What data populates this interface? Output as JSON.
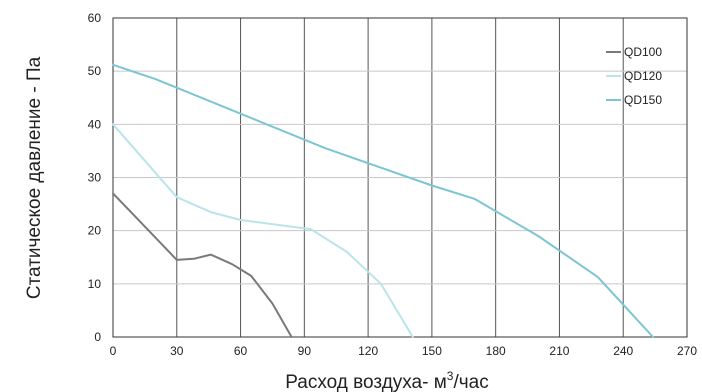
{
  "chart_data": {
    "type": "line",
    "title": "",
    "xlabel": "Расход воздуха- м³/час",
    "xlabel_main": "Расход воздуха- м",
    "xlabel_sup": "3",
    "xlabel_tail": "/час",
    "ylabel": "Статическое давление - Па",
    "xlim": [
      0,
      270
    ],
    "ylim": [
      0,
      60
    ],
    "xticks": [
      "0",
      "30",
      "60",
      "90",
      "120",
      "150",
      "180",
      "210",
      "240",
      "270"
    ],
    "yticks": [
      "0",
      "10",
      "20",
      "30",
      "40",
      "50",
      "60"
    ],
    "grid": true,
    "legend_position": "top-right",
    "series": [
      {
        "name": "QD100",
        "color": "#7a7a7a",
        "points": [
          [
            0,
            27
          ],
          [
            30,
            14.5
          ],
          [
            38,
            14.7
          ],
          [
            46,
            15.5
          ],
          [
            56,
            13.7
          ],
          [
            65,
            11.5
          ],
          [
            75,
            6.3
          ],
          [
            84,
            0
          ]
        ]
      },
      {
        "name": "QD120",
        "color": "#b8e4ea",
        "points": [
          [
            0,
            40
          ],
          [
            30,
            26.3
          ],
          [
            46,
            23.5
          ],
          [
            60,
            22
          ],
          [
            93,
            20.3
          ],
          [
            110,
            16
          ],
          [
            126,
            10
          ],
          [
            141,
            0
          ]
        ]
      },
      {
        "name": "QD150",
        "color": "#7cc5d3",
        "points": [
          [
            0,
            51.2
          ],
          [
            20,
            48.5
          ],
          [
            60,
            42
          ],
          [
            100,
            35.5
          ],
          [
            150,
            28.5
          ],
          [
            170,
            26
          ],
          [
            200,
            19
          ],
          [
            228,
            11.3
          ],
          [
            254,
            0
          ]
        ]
      }
    ]
  }
}
